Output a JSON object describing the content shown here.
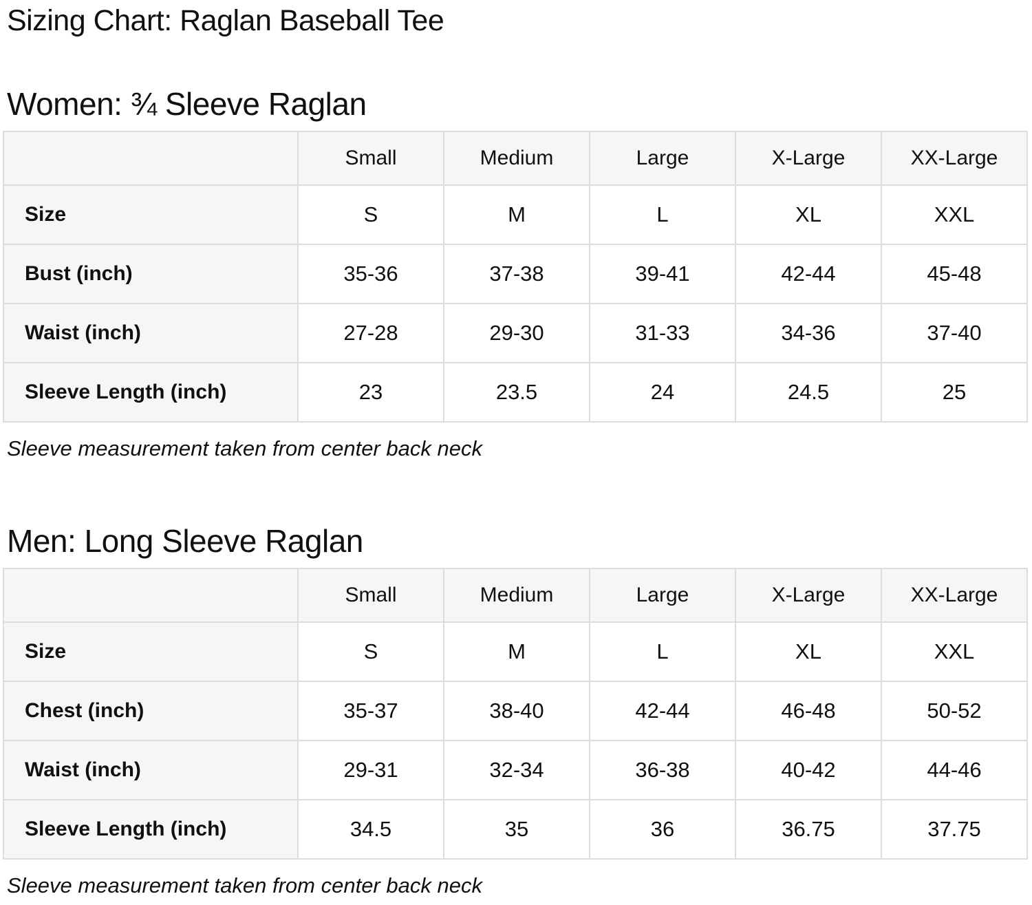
{
  "page": {
    "title": "Sizing Chart: Raglan Baseball Tee"
  },
  "colors": {
    "text": "#0f1111",
    "table_border": "#dcdcdc",
    "header_cell_bg": "#f7f6f6",
    "data_cell_bg": "#ffffff"
  },
  "women": {
    "heading": "Women: ¾ Sleeve Raglan",
    "columns": [
      "Small",
      "Medium",
      "Large",
      "X-Large",
      "XX-Large"
    ],
    "rows": [
      {
        "label": "Size",
        "values": [
          "S",
          "M",
          "L",
          "XL",
          "XXL"
        ]
      },
      {
        "label": "Bust (inch)",
        "values": [
          "35-36",
          "37-38",
          "39-41",
          "42-44",
          "45-48"
        ]
      },
      {
        "label": "Waist (inch)",
        "values": [
          "27-28",
          "29-30",
          "31-33",
          "34-36",
          "37-40"
        ]
      },
      {
        "label": "Sleeve Length (inch)",
        "values": [
          "23",
          "23.5",
          "24",
          "24.5",
          "25"
        ]
      }
    ],
    "note": "Sleeve measurement taken from center back neck"
  },
  "men": {
    "heading": "Men: Long Sleeve Raglan",
    "columns": [
      "Small",
      "Medium",
      "Large",
      "X-Large",
      "XX-Large"
    ],
    "rows": [
      {
        "label": "Size",
        "values": [
          "S",
          "M",
          "L",
          "XL",
          "XXL"
        ]
      },
      {
        "label": "Chest (inch)",
        "values": [
          "35-37",
          "38-40",
          "42-44",
          "46-48",
          "50-52"
        ]
      },
      {
        "label": "Waist (inch)",
        "values": [
          "29-31",
          "32-34",
          "36-38",
          "40-42",
          "44-46"
        ]
      },
      {
        "label": "Sleeve Length (inch)",
        "values": [
          "34.5",
          "35",
          "36",
          "36.75",
          "37.75"
        ]
      }
    ],
    "note": "Sleeve measurement taken from center back neck"
  }
}
